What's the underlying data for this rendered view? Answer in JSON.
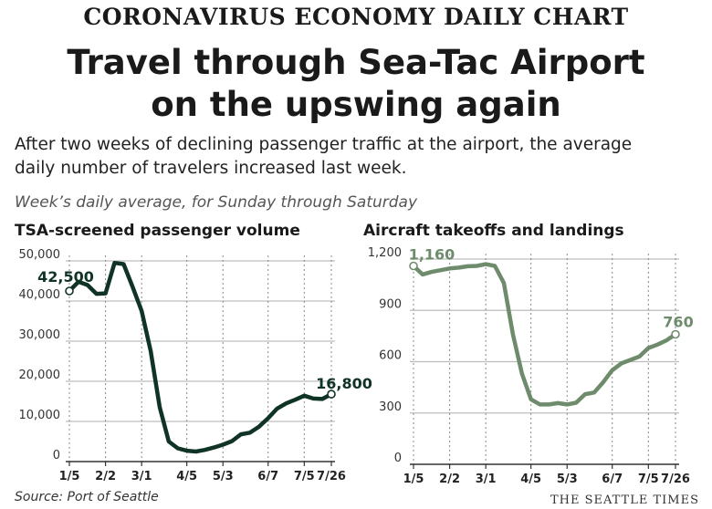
{
  "header": {
    "kicker": "CORONAVIRUS ECONOMY DAILY CHART",
    "headline_line1": "Travel through Sea-Tac Airport",
    "headline_line2": "on the upswing again",
    "intro_line1": "After two weeks of declining passenger traffic at the airport, the average",
    "intro_line2": "daily number of travelers increased last week.",
    "subtitle": "Week’s daily average, for Sunday through Saturday"
  },
  "footer": {
    "source": "Source: Port of Seattle",
    "credit": "THE SEATTLE TIMES"
  },
  "colors": {
    "passengers_line": "#0f3325",
    "aircraft_line": "#6e8c6c",
    "grid": "#bdbdbd",
    "axis": "#333333"
  },
  "chart_data": [
    {
      "type": "line",
      "title": "TSA-screened passenger volume",
      "xlabel": "",
      "ylabel": "",
      "ylim": [
        0,
        50000
      ],
      "yticks": [
        0,
        10000,
        20000,
        30000,
        40000,
        50000
      ],
      "ytick_labels": [
        "0",
        "10,000",
        "20,000",
        "30,000",
        "40,000",
        "50,000"
      ],
      "xticks": [
        "1/5",
        "2/2",
        "3/1",
        "4/5",
        "5/3",
        "6/7",
        "7/5",
        "7/26"
      ],
      "xtick_weeks": [
        0,
        4,
        8,
        13,
        17,
        22,
        26,
        29
      ],
      "grid": true,
      "weeks": [
        0,
        1,
        2,
        3,
        4,
        5,
        6,
        7,
        8,
        9,
        10,
        11,
        12,
        13,
        14,
        15,
        16,
        17,
        18,
        19,
        20,
        21,
        22,
        23,
        24,
        25,
        26,
        27,
        28,
        29
      ],
      "values": [
        42500,
        44800,
        44000,
        41800,
        41900,
        49500,
        49200,
        43500,
        37500,
        27500,
        13500,
        5000,
        3300,
        2700,
        2500,
        2900,
        3500,
        4200,
        5100,
        6800,
        7200,
        8700,
        10800,
        13200,
        14500,
        15400,
        16400,
        15700,
        15600,
        16800
      ],
      "annotations": [
        {
          "week": 0,
          "label": "42,500"
        },
        {
          "week": 29,
          "label": "16,800"
        }
      ]
    },
    {
      "type": "line",
      "title": "Aircraft takeoffs and landings",
      "xlabel": "",
      "ylabel": "",
      "ylim": [
        0,
        1200
      ],
      "yticks": [
        0,
        300,
        600,
        900,
        1200
      ],
      "ytick_labels": [
        "0",
        "300",
        "600",
        "900",
        "1,200"
      ],
      "xticks": [
        "1/5",
        "2/2",
        "3/1",
        "4/5",
        "5/3",
        "6/7",
        "7/5",
        "7/26"
      ],
      "xtick_weeks": [
        0,
        4,
        8,
        13,
        17,
        22,
        26,
        29
      ],
      "grid": true,
      "weeks": [
        0,
        1,
        2,
        3,
        4,
        5,
        6,
        7,
        8,
        9,
        10,
        11,
        12,
        13,
        14,
        15,
        16,
        17,
        18,
        19,
        20,
        21,
        22,
        23,
        24,
        25,
        26,
        27,
        28,
        29
      ],
      "values": [
        1160,
        1110,
        1125,
        1135,
        1145,
        1150,
        1158,
        1160,
        1170,
        1160,
        1060,
        760,
        530,
        380,
        350,
        350,
        358,
        350,
        360,
        410,
        420,
        480,
        550,
        590,
        610,
        630,
        680,
        700,
        725,
        760
      ],
      "annotations": [
        {
          "week": 0,
          "label": "1,160"
        },
        {
          "week": 29,
          "label": "760"
        }
      ]
    }
  ]
}
